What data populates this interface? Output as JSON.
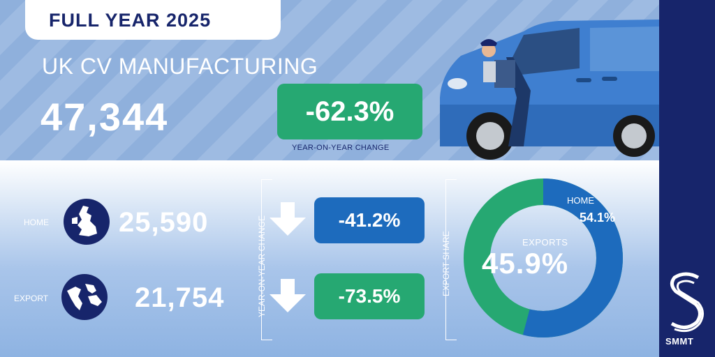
{
  "header": {
    "title": "FULL YEAR 2025"
  },
  "headline": {
    "subtitle": "UK CV MANUFACTURING",
    "total": "47,344",
    "change": "-62.3%",
    "change_label": "YEAR-ON-YEAR CHANGE"
  },
  "breakdown": {
    "yoy_label": "YEAR-ON-YEAR CHANGE",
    "home": {
      "label": "HOME",
      "value": "25,590",
      "change": "-41.2%"
    },
    "export": {
      "label": "EXPORT",
      "value": "21,754",
      "change": "-73.5%"
    }
  },
  "share": {
    "axis_label": "EXPORT SHARE",
    "home_label": "HOME",
    "home_pct": "54.1%",
    "home_value": 54.1,
    "exports_label": "EXPORTS",
    "exports_pct": "45.9%",
    "exports_value": 45.9
  },
  "brand": {
    "name": "SMMT"
  },
  "colors": {
    "navy": "#17256b",
    "green": "#26a872",
    "blue": "#1d6bbd",
    "van": "#3f7fd0"
  }
}
